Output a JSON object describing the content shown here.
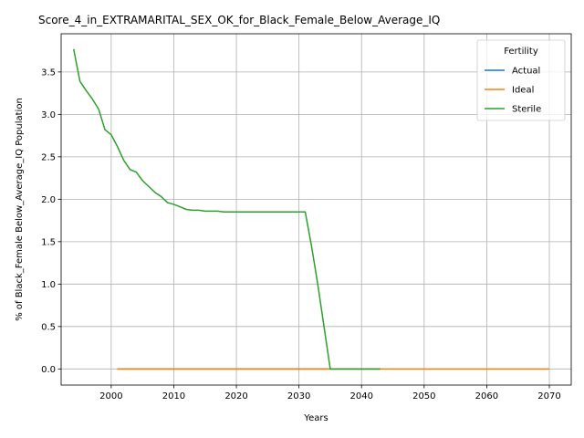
{
  "chart_data": {
    "type": "line",
    "title": "Score_4_in_EXTRAMARITAL_SEX_OK_for_Black_Female_Below_Average_IQ",
    "xlabel": "Years",
    "ylabel": "% of Black_Female Below_Average_IQ Population",
    "xlim": [
      1992,
      2073.5
    ],
    "ylim": [
      -0.19,
      3.95
    ],
    "xticks": [
      2000,
      2010,
      2020,
      2030,
      2040,
      2050,
      2060,
      2070
    ],
    "yticks": [
      0.0,
      0.5,
      1.0,
      1.5,
      2.0,
      2.5,
      3.0,
      3.5
    ],
    "ytick_labels": [
      "0.0",
      "0.5",
      "1.0",
      "1.5",
      "2.0",
      "2.5",
      "3.0",
      "3.5"
    ],
    "grid": true,
    "legend": {
      "title": "Fertility",
      "placement": "top-right"
    },
    "series": [
      {
        "name": "Actual",
        "color": "#1f77b4",
        "x": [
          2001,
          2043
        ],
        "y": [
          0.0,
          0.0
        ]
      },
      {
        "name": "Ideal",
        "color": "#ff7f0e",
        "x": [
          2001,
          2010,
          2020,
          2030,
          2040,
          2050,
          2060,
          2070
        ],
        "y": [
          0.0,
          0.0,
          0.0,
          0.0,
          0.0,
          0.0,
          0.0,
          0.0
        ]
      },
      {
        "name": "Sterile",
        "color": "#2ca02c",
        "x": [
          1994,
          1995,
          1996,
          1997,
          1998,
          1999,
          2000,
          2001,
          2002,
          2003,
          2004,
          2005,
          2006,
          2007,
          2008,
          2009,
          2010,
          2011,
          2012,
          2013,
          2014,
          2015,
          2016,
          2017,
          2018,
          2019,
          2020,
          2025,
          2031,
          2032,
          2033,
          2034,
          2035,
          2040,
          2043
        ],
        "y": [
          3.77,
          3.39,
          3.28,
          3.18,
          3.06,
          2.82,
          2.76,
          2.62,
          2.46,
          2.35,
          2.32,
          2.22,
          2.15,
          2.08,
          2.03,
          1.96,
          1.94,
          1.91,
          1.88,
          1.87,
          1.87,
          1.86,
          1.86,
          1.86,
          1.85,
          1.85,
          1.85,
          1.85,
          1.85,
          1.45,
          1.0,
          0.5,
          0.0,
          0.0,
          0.0
        ]
      }
    ]
  }
}
